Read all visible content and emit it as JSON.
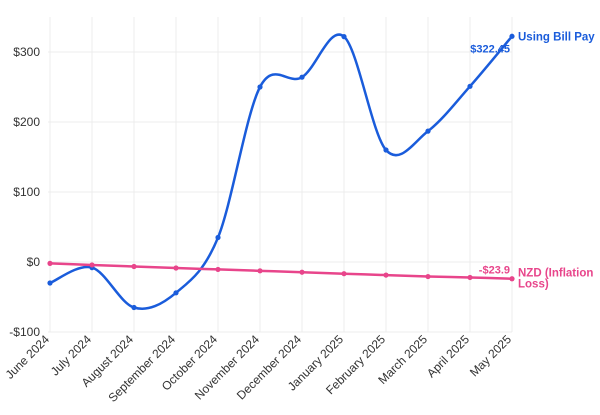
{
  "chart_data": {
    "type": "line",
    "categories": [
      "June 2024",
      "July 2024",
      "August 2024",
      "September 2024",
      "October 2024",
      "November 2024",
      "December 2024",
      "January 2025",
      "February 2025",
      "March 2025",
      "April 2025",
      "May 2025"
    ],
    "ylim": [
      -100,
      350
    ],
    "yticks": [
      -100,
      0,
      100,
      200,
      300
    ],
    "ytick_labels": [
      "-$100",
      "$0",
      "$100",
      "$200",
      "$300"
    ],
    "grid": true,
    "series": [
      {
        "name": "Using Bill Pay",
        "color": "#1a5cdb",
        "values": [
          -30,
          -8,
          -65,
          -44,
          35,
          250,
          264,
          322,
          160,
          187,
          251,
          322.45
        ],
        "end_label": "$322.45",
        "series_label": [
          "Using Bill Pay"
        ]
      },
      {
        "name": "NZD (Inflation Loss)",
        "color": "#e8458b",
        "values": [
          -2,
          -4.2,
          -6.4,
          -8.6,
          -10.6,
          -12.6,
          -14.6,
          -16.7,
          -18.7,
          -20.8,
          -22.1,
          -23.9
        ],
        "end_label": "-$23.9",
        "series_label": [
          "NZD (Inflation",
          "Loss)"
        ]
      }
    ]
  }
}
